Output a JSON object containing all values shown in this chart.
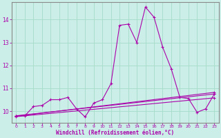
{
  "background_color": "#cceee8",
  "grid_color": "#aaddcc",
  "line_color": "#aa00aa",
  "spine_color": "#888888",
  "xlabel": "Windchill (Refroidissement éolien,°C)",
  "xlim": [
    -0.5,
    23.5
  ],
  "ylim": [
    9.5,
    14.75
  ],
  "yticks": [
    10,
    11,
    12,
    13,
    14
  ],
  "xticks": [
    0,
    1,
    2,
    3,
    4,
    5,
    6,
    7,
    8,
    9,
    10,
    11,
    12,
    13,
    14,
    15,
    16,
    17,
    18,
    19,
    20,
    21,
    22,
    23
  ],
  "series1_x": [
    0,
    1,
    2,
    3,
    4,
    5,
    6,
    7,
    8,
    9,
    10,
    11,
    12,
    13,
    14,
    15,
    16,
    17,
    18,
    19,
    20,
    21,
    22,
    23
  ],
  "series1_y": [
    9.8,
    9.8,
    10.2,
    10.25,
    10.5,
    10.5,
    10.6,
    10.1,
    9.75,
    10.35,
    10.5,
    11.2,
    13.75,
    13.8,
    13.0,
    14.55,
    14.1,
    12.8,
    11.85,
    10.6,
    10.55,
    9.95,
    10.1,
    10.75
  ],
  "series2_x": [
    0,
    23
  ],
  "series2_y": [
    9.8,
    10.75
  ],
  "series3_x": [
    0,
    23
  ],
  "series3_y": [
    9.78,
    10.82
  ],
  "series4_x": [
    0,
    23
  ],
  "series4_y": [
    9.76,
    10.58
  ]
}
